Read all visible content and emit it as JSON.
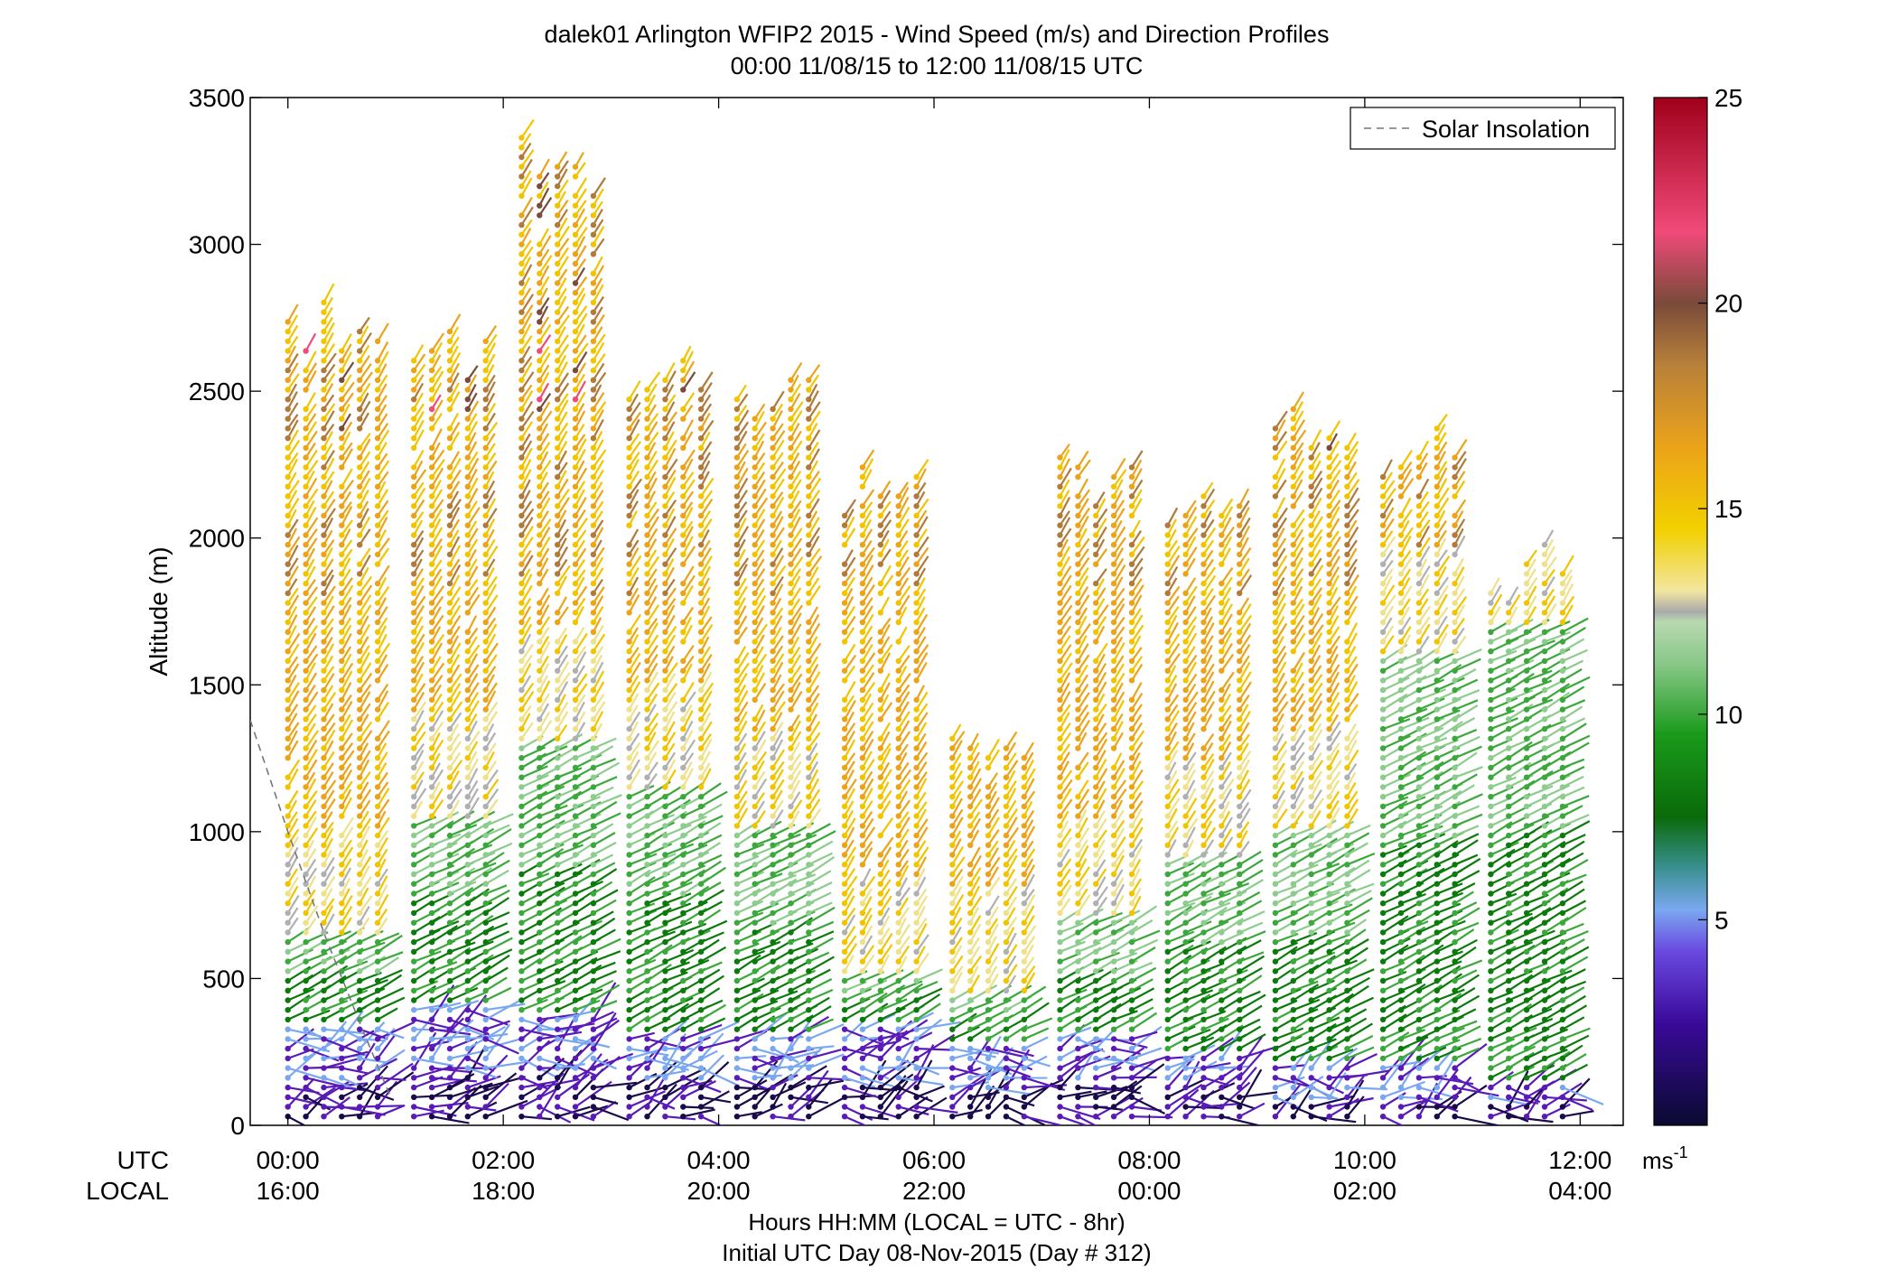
{
  "chart_data": {
    "type": "scatter",
    "title": "dalek01 Arlington WFIP2 2015 - Wind Speed (m/s) and Direction Profiles",
    "subtitle": "00:00 11/08/15 to 12:00 11/08/15  UTC",
    "ylabel": "Altitude (m)",
    "xlabel": "Hours HH:MM  (LOCAL = UTC - 8hr)",
    "xlabel2": "Initial UTC Day 08-Nov-2015 (Day # 312)",
    "ylim": [
      0,
      3500
    ],
    "xlim_hours": [
      -0.35,
      12.4
    ],
    "y_ticks": [
      0,
      500,
      1000,
      1500,
      2000,
      2500,
      3000,
      3500
    ],
    "x_ticks": [
      {
        "hour": 0,
        "utc": "00:00",
        "local": "16:00"
      },
      {
        "hour": 2,
        "utc": "02:00",
        "local": "18:00"
      },
      {
        "hour": 4,
        "utc": "04:00",
        "local": "20:00"
      },
      {
        "hour": 6,
        "utc": "06:00",
        "local": "22:00"
      },
      {
        "hour": 8,
        "utc": "08:00",
        "local": "00:00"
      },
      {
        "hour": 10,
        "utc": "10:00",
        "local": "02:00"
      },
      {
        "hour": 12,
        "utc": "12:00",
        "local": "04:00"
      }
    ],
    "row_labels": {
      "utc": "UTC",
      "local": "LOCAL"
    },
    "legend": {
      "entry": "Solar Insolation",
      "position": "top-right",
      "style": "dashed",
      "color": "#777777"
    },
    "colorbar": {
      "range": [
        0,
        25
      ],
      "ticks": [
        5,
        10,
        15,
        20,
        25
      ],
      "unit_label": "ms",
      "unit_exp": "-1"
    },
    "solar_insolation": {
      "x_hours": [
        -0.35,
        0.0,
        0.35,
        0.7,
        0.95
      ],
      "y": [
        1380,
        1000,
        640,
        320,
        100
      ]
    },
    "profile_spacing_hours": 0.1667,
    "profiles": [
      {
        "start": 0.0,
        "end": 1.0,
        "low_top": 350,
        "green_top": 650,
        "total_top": 2850
      },
      {
        "start": 1.17,
        "end": 2.0,
        "low_top": 420,
        "green_top": 1050,
        "total_top": 2800
      },
      {
        "start": 2.17,
        "end": 3.0,
        "low_top": 380,
        "green_top": 1300,
        "total_top": 3500
      },
      {
        "start": 3.17,
        "end": 4.0,
        "low_top": 300,
        "green_top": 1150,
        "total_top": 2750
      },
      {
        "start": 4.17,
        "end": 5.0,
        "low_top": 300,
        "green_top": 1000,
        "total_top": 2600
      },
      {
        "start": 5.17,
        "end": 6.0,
        "low_top": 350,
        "green_top": 500,
        "total_top": 2300
      },
      {
        "start": 6.17,
        "end": 7.0,
        "low_top": 280,
        "green_top": 450,
        "total_top": 1400
      },
      {
        "start": 7.17,
        "end": 8.0,
        "low_top": 300,
        "green_top": 700,
        "total_top": 2300
      },
      {
        "start": 8.17,
        "end": 9.0,
        "low_top": 250,
        "green_top": 900,
        "total_top": 2200
      },
      {
        "start": 9.17,
        "end": 10.0,
        "low_top": 200,
        "green_top": 1000,
        "total_top": 2500
      },
      {
        "start": 10.17,
        "end": 11.0,
        "low_top": 200,
        "green_top": 1600,
        "total_top": 2400
      },
      {
        "start": 11.17,
        "end": 12.0,
        "low_top": 150,
        "green_top": 1700,
        "total_top": 2000
      }
    ],
    "colors": {
      "dark_purple": "#1a0a4a",
      "purple": "#5a1ab8",
      "light_blue": "#7aa8f0",
      "dark_green": "#0a7a0a",
      "green": "#3aa83a",
      "light_green": "#8ccc8c",
      "pale_yellow": "#efe08a",
      "yellow": "#f2c400",
      "orange": "#eba31a",
      "brown": "#b07a3a",
      "dark_brown": "#7a4a3a",
      "pink": "#f04a7a",
      "red": "#b0001a",
      "grey": "#b0b0b0"
    }
  }
}
